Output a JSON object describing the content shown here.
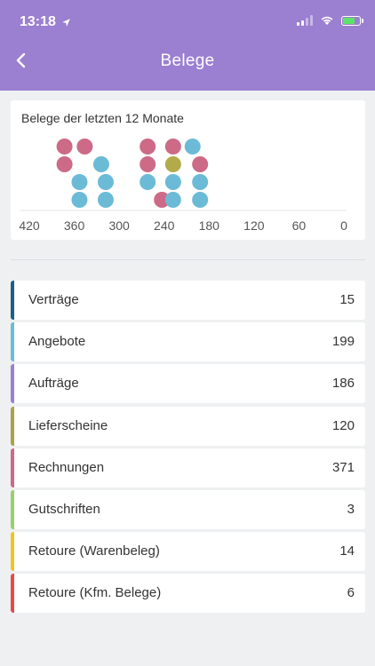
{
  "status": {
    "time": "13:18"
  },
  "header": {
    "title": "Belege",
    "back_icon": "chevron-left-icon"
  },
  "chart": {
    "title": "Belege der letzten 12 Monate",
    "ticks": [
      "420",
      "360",
      "300",
      "240",
      "180",
      "120",
      "60",
      "0"
    ],
    "colors": {
      "blue": "#6bbbd6",
      "pink": "#cc6a87",
      "olive": "#b3ab49"
    }
  },
  "chart_data": {
    "type": "scatter",
    "title": "Belege der letzten 12 Monate",
    "x_ticks": [
      420,
      360,
      300,
      240,
      180,
      120,
      60,
      0
    ],
    "xlim": [
      420,
      0
    ],
    "points": [
      {
        "x": 353,
        "level": 0,
        "color": "blue"
      },
      {
        "x": 353,
        "level": 1,
        "color": "blue"
      },
      {
        "x": 318,
        "level": 0,
        "color": "blue"
      },
      {
        "x": 318,
        "level": 1,
        "color": "blue"
      },
      {
        "x": 373,
        "level": 2,
        "color": "pink"
      },
      {
        "x": 373,
        "level": 3,
        "color": "pink"
      },
      {
        "x": 346,
        "level": 3,
        "color": "pink"
      },
      {
        "x": 324,
        "level": 2,
        "color": "blue"
      },
      {
        "x": 262,
        "level": 1,
        "color": "blue"
      },
      {
        "x": 262,
        "level": 2,
        "color": "pink"
      },
      {
        "x": 262,
        "level": 3,
        "color": "pink"
      },
      {
        "x": 243,
        "level": 0,
        "color": "pink"
      },
      {
        "x": 228,
        "level": 0,
        "color": "blue"
      },
      {
        "x": 228,
        "level": 1,
        "color": "blue"
      },
      {
        "x": 228,
        "level": 2,
        "color": "olive"
      },
      {
        "x": 228,
        "level": 3,
        "color": "pink"
      },
      {
        "x": 192,
        "level": 0,
        "color": "blue"
      },
      {
        "x": 192,
        "level": 1,
        "color": "blue"
      },
      {
        "x": 192,
        "level": 2,
        "color": "pink"
      },
      {
        "x": 202,
        "level": 3,
        "color": "blue"
      }
    ]
  },
  "list": [
    {
      "label": "Verträge",
      "count": "15",
      "color": "#1e5f82"
    },
    {
      "label": "Angebote",
      "count": "199",
      "color": "#6bbbd6"
    },
    {
      "label": "Aufträge",
      "count": "186",
      "color": "#9b7fd1"
    },
    {
      "label": "Lieferscheine",
      "count": "120",
      "color": "#a8a347"
    },
    {
      "label": "Rechnungen",
      "count": "371",
      "color": "#cc6a87"
    },
    {
      "label": "Gutschriften",
      "count": "3",
      "color": "#97cf6f"
    },
    {
      "label": "Retoure (Warenbeleg)",
      "count": "14",
      "color": "#f4c324"
    },
    {
      "label": "Retoure (Kfm. Belege)",
      "count": "6",
      "color": "#e54b4b"
    }
  ]
}
